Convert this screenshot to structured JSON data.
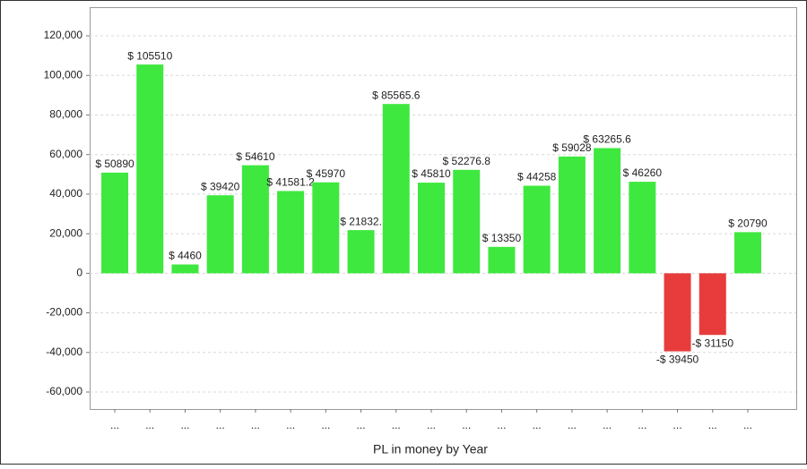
{
  "chart_data": {
    "type": "bar",
    "x_label": "PL in money by Year",
    "categories": [
      "...",
      "...",
      "...",
      "...",
      "...",
      "...",
      "...",
      "...",
      "...",
      "...",
      "...",
      "...",
      "...",
      "...",
      "...",
      "...",
      "...",
      "...",
      "..."
    ],
    "values": [
      50890,
      105510,
      4460,
      39420,
      54610,
      41581.2,
      45970,
      21832,
      85565.6,
      45810,
      52276.8,
      13350,
      44258,
      59028,
      63265.6,
      46260,
      -39450,
      -31150,
      20790
    ],
    "value_labels": [
      "$ 50890",
      "$ 105510",
      "$ 4460",
      "$ 39420",
      "$ 54610",
      "$ 41581.2",
      "$ 45970",
      "$ 21832.",
      "$ 85565.6",
      "$ 45810",
      "$ 52276.8",
      "$ 13350",
      "$ 44258",
      "$ 59028",
      "$ 63265.6",
      "$ 46260",
      "-$ 39450",
      "-$ 31150",
      "$ 20790"
    ],
    "color": "#3fe83f",
    "negative_color": "#e83c3c",
    "ylim": [
      -68600,
      134500
    ],
    "yticks": [
      {
        "value": -60000,
        "label": "-60,000"
      },
      {
        "value": -40000,
        "label": "-40,000"
      },
      {
        "value": -20000,
        "label": "-20,000"
      },
      0,
      {
        "value": 20000,
        "label": "20,000"
      },
      {
        "value": 40000,
        "label": "40,000"
      },
      {
        "value": 60000,
        "label": "60,000"
      },
      {
        "value": 80000,
        "label": "80,000"
      },
      {
        "value": 100000,
        "label": "100,000"
      },
      {
        "value": 120000,
        "label": "120,000"
      }
    ],
    "grid": true
  }
}
